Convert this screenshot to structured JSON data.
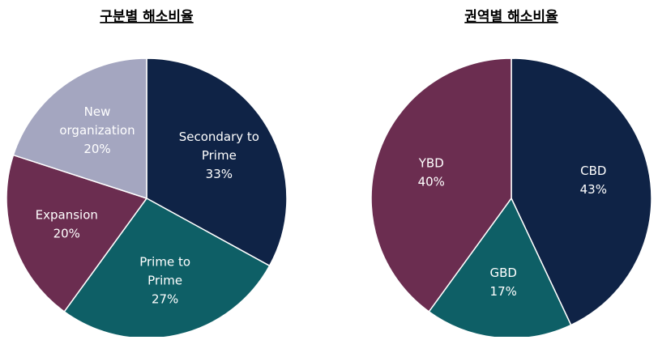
{
  "chart_data": [
    {
      "type": "pie",
      "title": "구분별 해소비율",
      "categories": [
        "Secondary to\nPrime",
        "Prime to\nPrime",
        "Expansion",
        "New\norganization"
      ],
      "values": [
        33,
        27,
        20,
        20
      ],
      "value_labels": [
        "33%",
        "27%",
        "20%",
        "20%"
      ],
      "colors": [
        "#0f2346",
        "#0e5f66",
        "#6b2d50",
        "#a4a6c0"
      ]
    },
    {
      "type": "pie",
      "title": "권역별 해소비율",
      "categories": [
        "CBD",
        "GBD",
        "YBD"
      ],
      "values": [
        43,
        17,
        40
      ],
      "value_labels": [
        "43%",
        "17%",
        "40%"
      ],
      "colors": [
        "#0f2346",
        "#0e5f66",
        "#6b2d50"
      ]
    }
  ]
}
